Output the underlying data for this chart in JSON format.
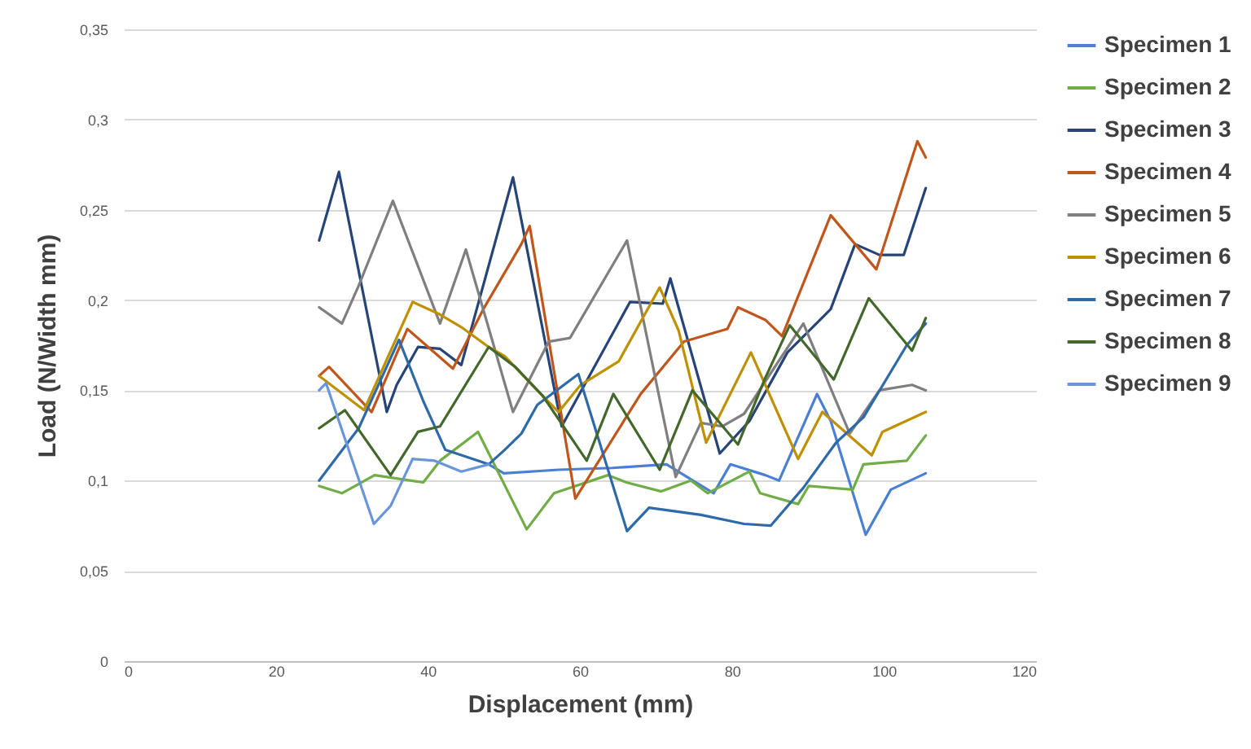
{
  "chart_data": {
    "type": "line",
    "xlabel": "Displacement (mm)",
    "ylabel": "Load (N/Width mm)",
    "xlim": [
      0,
      120
    ],
    "xticks": [
      0,
      20,
      40,
      60,
      80,
      100,
      120
    ],
    "ylim": [
      0,
      0.35
    ],
    "yticks": [
      0,
      {
        "value": 0.05,
        "label": "0,05"
      },
      {
        "value": 0.1,
        "label": "0,1"
      },
      {
        "value": 0.15,
        "label": "0,15"
      },
      {
        "value": 0.2,
        "label": "0,2"
      },
      {
        "value": 0.25,
        "label": "0,25"
      },
      {
        "value": 0.3,
        "label": "0,3"
      },
      {
        "value": 0.35,
        "label": "0,35"
      }
    ],
    "grid": "y",
    "legend": "right",
    "marker": "none",
    "line_style": "solid",
    "series": [
      {
        "name": "Specimen 1",
        "color": "#4a7fd4",
        "x": [
          48,
          50,
          57.2,
          64.3,
          71.4,
          77.6,
          79.8,
          84.4,
          86.2,
          91.2,
          93,
          97.6,
          100.9,
          105.5
        ],
        "values": [
          0.109,
          0.104,
          0.106,
          0.107,
          0.109,
          0.093,
          0.109,
          0.103,
          0.1,
          0.148,
          0.133,
          0.07,
          0.095,
          0.104
        ]
      },
      {
        "name": "Specimen 2",
        "color": "#70ad47",
        "x": [
          25.7,
          28.7,
          33,
          39.4,
          41.6,
          46.6,
          52.3,
          53,
          56.6,
          63.7,
          66.1,
          70.7,
          74.6,
          76.8,
          82.3,
          83.7,
          88.7,
          90.1,
          95.9,
          97.3,
          103,
          105.5
        ],
        "values": [
          0.097,
          0.093,
          0.103,
          0.099,
          0.111,
          0.127,
          0.079,
          0.073,
          0.093,
          0.103,
          0.099,
          0.094,
          0.1,
          0.093,
          0.105,
          0.093,
          0.087,
          0.097,
          0.095,
          0.109,
          0.111,
          0.125
        ]
      },
      {
        "name": "Specimen 3",
        "color": "#264478",
        "x": [
          25.7,
          28.3,
          34.6,
          35.9,
          38.7,
          41.6,
          44.4,
          51.2,
          57.6,
          66.6,
          70.9,
          71.9,
          78.4,
          82.3,
          87.3,
          93,
          96.2,
          99.4,
          102.6,
          105.5
        ],
        "values": [
          0.233,
          0.271,
          0.138,
          0.153,
          0.174,
          0.173,
          0.164,
          0.268,
          0.13,
          0.199,
          0.198,
          0.212,
          0.115,
          0.133,
          0.171,
          0.195,
          0.231,
          0.225,
          0.225,
          0.262
        ]
      },
      {
        "name": "Specimen 4",
        "color": "#c0561b",
        "x": [
          25.7,
          27,
          32.6,
          37.3,
          43.3,
          47.3,
          52.3,
          53.4,
          59.4,
          68,
          73.7,
          79.4,
          80.8,
          84.4,
          86.6,
          93,
          99,
          104.4,
          105.5
        ],
        "values": [
          0.158,
          0.163,
          0.138,
          0.184,
          0.162,
          0.195,
          0.231,
          0.241,
          0.09,
          0.148,
          0.177,
          0.184,
          0.196,
          0.189,
          0.18,
          0.247,
          0.217,
          0.288,
          0.279
        ]
      },
      {
        "name": "Specimen 5",
        "color": "#7f7f7f",
        "x": [
          25.7,
          28.7,
          30.9,
          35.4,
          41.6,
          45,
          51.2,
          55.9,
          58.7,
          66.2,
          72.6,
          75.9,
          78.7,
          81.6,
          89.4,
          95.5,
          99.4,
          103.7,
          105.5
        ],
        "values": [
          0.196,
          0.187,
          0.208,
          0.255,
          0.187,
          0.228,
          0.138,
          0.177,
          0.179,
          0.233,
          0.102,
          0.132,
          0.13,
          0.137,
          0.187,
          0.126,
          0.15,
          0.153,
          0.15
        ]
      },
      {
        "name": "Specimen 6",
        "color": "#bf9000",
        "x": [
          25.7,
          31.6,
          38,
          41.6,
          44.4,
          48,
          50.1,
          53.7,
          57.2,
          60.1,
          65.1,
          70.5,
          73,
          76.6,
          82.5,
          88.7,
          91.9,
          98.4,
          99.8,
          105.5
        ],
        "values": [
          0.158,
          0.139,
          0.199,
          0.192,
          0.185,
          0.174,
          0.169,
          0.153,
          0.138,
          0.153,
          0.166,
          0.207,
          0.183,
          0.121,
          0.171,
          0.112,
          0.138,
          0.114,
          0.127,
          0.138
        ]
      },
      {
        "name": "Specimen 7",
        "color": "#2e6aa8",
        "x": [
          25.7,
          30.9,
          36.2,
          39.4,
          42.3,
          48,
          50.1,
          52.3,
          54.4,
          59.8,
          66.2,
          69.1,
          75.9,
          81.6,
          85.1,
          89.4,
          93.7,
          97.3,
          103,
          105.5
        ],
        "values": [
          0.1,
          0.129,
          0.178,
          0.144,
          0.117,
          0.109,
          0.117,
          0.126,
          0.142,
          0.159,
          0.072,
          0.085,
          0.081,
          0.076,
          0.075,
          0.096,
          0.121,
          0.135,
          0.175,
          0.187
        ]
      },
      {
        "name": "Specimen 8",
        "color": "#43682b",
        "x": [
          25.7,
          29.1,
          35.1,
          38.7,
          41.6,
          48,
          51.5,
          55.1,
          60.9,
          64.4,
          70.5,
          74.8,
          80.8,
          84.4,
          87.6,
          93.4,
          98,
          103.7,
          105.5
        ],
        "values": [
          0.129,
          0.139,
          0.103,
          0.127,
          0.13,
          0.174,
          0.163,
          0.147,
          0.111,
          0.148,
          0.106,
          0.15,
          0.12,
          0.157,
          0.186,
          0.156,
          0.201,
          0.172,
          0.19
        ]
      },
      {
        "name": "Specimen 9",
        "color": "#6b95db",
        "x": [
          25.7,
          26.6,
          32.9,
          35.1,
          38,
          40.9,
          44.4,
          48
        ],
        "values": [
          0.15,
          0.154,
          0.076,
          0.086,
          0.112,
          0.111,
          0.105,
          0.109
        ]
      }
    ]
  }
}
